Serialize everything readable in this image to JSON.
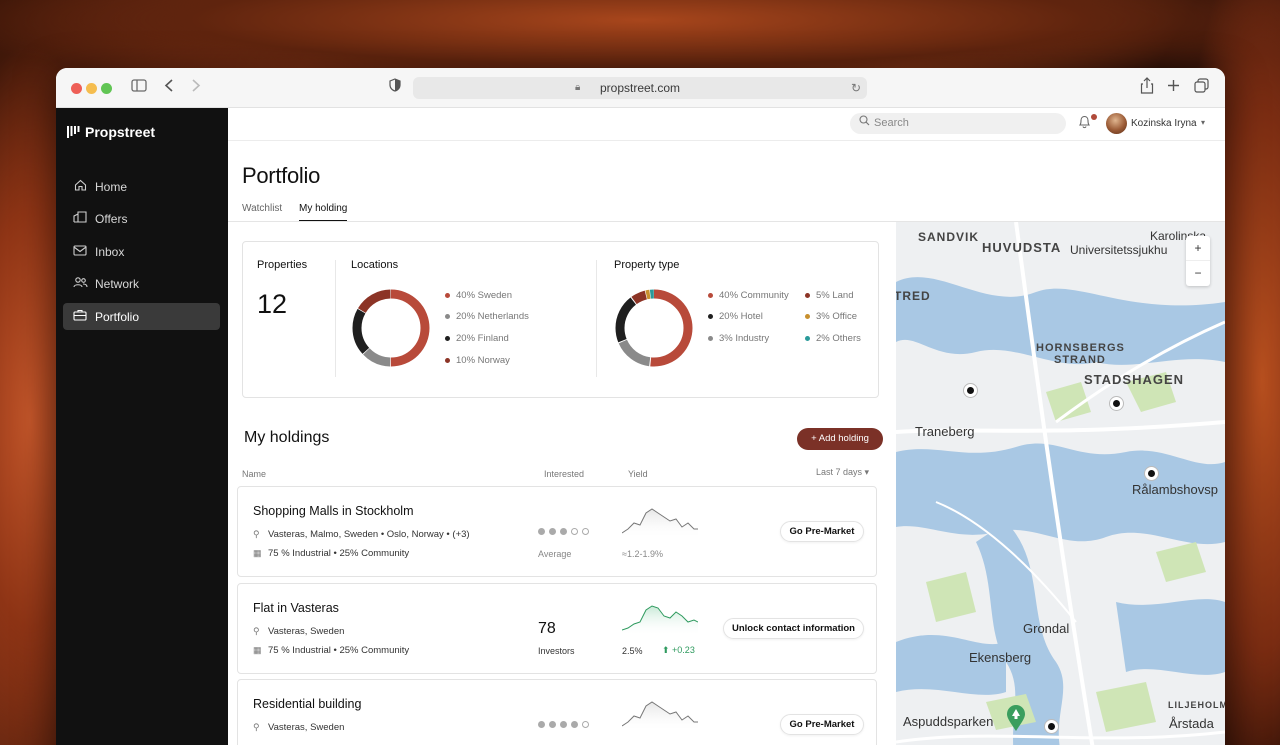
{
  "browser": {
    "url": "propstreet.com"
  },
  "brand": {
    "name": "Propstreet"
  },
  "nav": [
    {
      "label": "Home",
      "icon": "home-icon"
    },
    {
      "label": "Offers",
      "icon": "building-icon"
    },
    {
      "label": "Inbox",
      "icon": "mail-icon"
    },
    {
      "label": "Network",
      "icon": "people-icon"
    },
    {
      "label": "Portfolio",
      "icon": "briefcase-icon",
      "active": true
    }
  ],
  "topbar": {
    "search_placeholder": "Search",
    "user_name": "Kozinska Iryna"
  },
  "page": {
    "title": "Portfolio",
    "tabs": [
      "Watchlist",
      "My holding"
    ],
    "active_tab": "My holding"
  },
  "stats": {
    "properties_label": "Properties",
    "properties_count": "12",
    "locations_label": "Locations",
    "locations": [
      {
        "label": "40% Sweden",
        "color": "#b84a3a"
      },
      {
        "label": "20% Netherlands",
        "color": "#8a8a8a"
      },
      {
        "label": "20% Finland",
        "color": "#1f1f1f"
      },
      {
        "label": "10% Norway",
        "color": "#8c3426"
      }
    ],
    "property_type_label": "Property type",
    "property_types": [
      {
        "label": "40% Community",
        "color": "#b84a3a"
      },
      {
        "label": "20% Hotel",
        "color": "#1f1f1f"
      },
      {
        "label": "3% Industry",
        "color": "#8a8a8a"
      },
      {
        "label": "5% Land",
        "color": "#8c3426"
      },
      {
        "label": "3% Office",
        "color": "#c8902e"
      },
      {
        "label": "2% Others",
        "color": "#2a9a9a"
      }
    ]
  },
  "holdings": {
    "title": "My holdings",
    "add_label": "Add holding",
    "columns": {
      "name": "Name",
      "interested": "Interested",
      "yield": "Yield",
      "period": "Last 7 days"
    },
    "items": [
      {
        "name": "Shopping Malls in Stockholm",
        "location": "Vasteras, Malmo, Sweden • Oslo, Norway • (+3)",
        "type": "75 % Industrial  •  25% Community",
        "interest_label": "Average",
        "yield_range": "≈1.2-1.9%",
        "action": "Go Pre-Market"
      },
      {
        "name": "Flat in Vasteras",
        "location": "Vasteras, Sweden",
        "type": "75 % Industrial  •  25% Community",
        "investors_count": "78",
        "investors_label": "Investors",
        "yield_value": "2.5%",
        "yield_change": "+0.23",
        "action": "Unlock contact information"
      },
      {
        "name": "Residential building",
        "location": "Vasteras, Sweden",
        "action": "Go Pre-Market"
      }
    ]
  },
  "map": {
    "labels": [
      "SANDVIK",
      "HUVUDSTA",
      "Karolinska",
      "Universitetssjukhu",
      "TRED",
      "HORNSBERGS",
      "STRAND",
      "STADSHAGEN",
      "Traneberg",
      "Rålambshovsp",
      "Grondal",
      "Ekensberg",
      "Aspuddsparken",
      "LILJEHOLMEN",
      "Årstada"
    ]
  }
}
